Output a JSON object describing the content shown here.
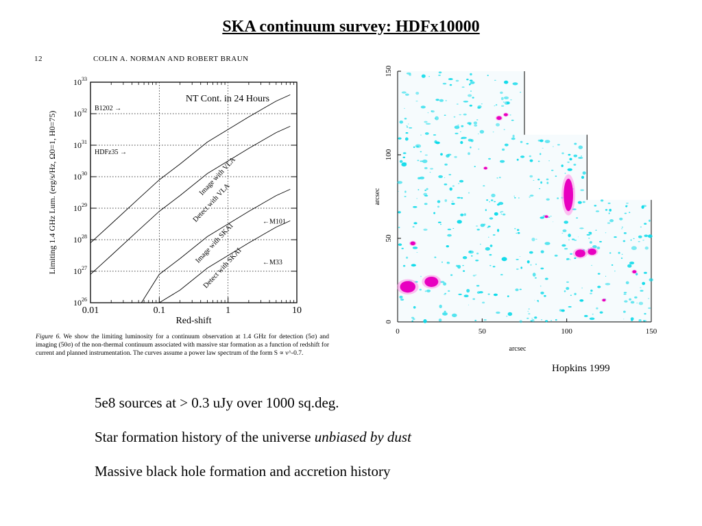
{
  "title": "SKA continuum survey: HDFx10000",
  "scan": {
    "page_number": "12",
    "running_head": "COLIN A. NORMAN AND ROBERT BRAUN",
    "caption": {
      "figure_label": "Figure 6.",
      "text": "We show the limiting luminosity for a continuum observation at 1.4 GHz for detection (5σ) and imaging (50σ) of the non-thermal continuum associated with massive star formation as a function of redshift for current and planned instrumentation. The curves assume a power law spectrum of the form S ∝ ν^-0.7."
    }
  },
  "chart_data": [
    {
      "type": "line",
      "title": "NT Cont. in 24 Hours",
      "xlabel": "Red-shift",
      "ylabel": "Limiting 1.4 GHz Lum. (erg/s/Hz, Ω0=1, H0=75)",
      "xscale": "log",
      "yscale": "log",
      "xlim": [
        0.01,
        10
      ],
      "ylim": [
        1e+26,
        1e+33
      ],
      "x_tick_labels": [
        "0.01",
        "0.1",
        "1",
        "10"
      ],
      "y_tick_exponents": [
        26,
        27,
        28,
        29,
        30,
        31,
        32,
        33
      ],
      "grid": "dotted",
      "series": [
        {
          "name": "Image with VLA",
          "x": [
            0.01,
            0.02,
            0.05,
            0.1,
            0.2,
            0.5,
            1,
            2,
            5,
            8
          ],
          "log10_y": [
            27.9,
            28.5,
            29.3,
            29.9,
            30.4,
            31.1,
            31.5,
            31.9,
            32.4,
            32.6
          ]
        },
        {
          "name": "Detect with VLA",
          "x": [
            0.01,
            0.02,
            0.05,
            0.1,
            0.2,
            0.5,
            1,
            2,
            5,
            8
          ],
          "log10_y": [
            26.9,
            27.5,
            28.3,
            28.9,
            29.4,
            30.1,
            30.5,
            30.9,
            31.4,
            31.6
          ]
        },
        {
          "name": "Image with SKAI",
          "x": [
            0.055,
            0.1,
            0.2,
            0.5,
            1,
            2,
            5,
            8
          ],
          "log10_y": [
            26.0,
            26.9,
            27.4,
            28.1,
            28.5,
            28.9,
            29.4,
            29.6
          ]
        },
        {
          "name": "Detect with SKAI",
          "x": [
            0.1,
            0.2,
            0.5,
            1,
            2,
            5,
            8
          ],
          "log10_y": [
            26.0,
            26.4,
            27.1,
            27.5,
            27.9,
            28.4,
            28.6
          ]
        }
      ],
      "annotations": [
        {
          "text": "B1202 →",
          "log10_y": 32.2
        },
        {
          "text": "HDFz35 →",
          "log10_y": 30.8
        },
        {
          "text": "←M101",
          "log10_y": 28.6
        },
        {
          "text": "←M33",
          "log10_y": 27.3
        }
      ]
    },
    {
      "type": "scatter",
      "xlabel": "arcsec",
      "ylabel": "arcsec",
      "xlim": [
        0,
        150
      ],
      "ylim": [
        0,
        150
      ],
      "x_tick_labels": [
        "0",
        "50",
        "100",
        "150"
      ],
      "y_tick_labels": [
        "0",
        "50",
        "100",
        "150"
      ],
      "colors": {
        "faint": "#00d8e8",
        "bright": "#e800c0"
      },
      "bright_sources": [
        {
          "x": 6,
          "y": 21,
          "size": 4.5
        },
        {
          "x": 20,
          "y": 24,
          "size": 4
        },
        {
          "x": 101,
          "y": 76,
          "size": 5
        },
        {
          "x": 108,
          "y": 41,
          "size": 3
        },
        {
          "x": 115,
          "y": 42,
          "size": 2.5
        },
        {
          "x": 9,
          "y": 47,
          "size": 1.5
        },
        {
          "x": 60,
          "y": 122,
          "size": 1.5
        },
        {
          "x": 64,
          "y": 124,
          "size": 1.2
        },
        {
          "x": 52,
          "y": 92,
          "size": 1
        },
        {
          "x": 140,
          "y": 30,
          "size": 1.2
        },
        {
          "x": 88,
          "y": 63,
          "size": 1
        },
        {
          "x": 122,
          "y": 13,
          "size": 1
        }
      ]
    }
  ],
  "credit": "Hopkins 1999",
  "bullets": [
    {
      "text": "5e8 sources at > 0.3 uJy over 1000 sq.deg.",
      "italic": ""
    },
    {
      "text": "Star formation history of the universe ",
      "italic": "unbiased by dust"
    },
    {
      "text": "Massive black hole formation and accretion history",
      "italic": ""
    }
  ]
}
